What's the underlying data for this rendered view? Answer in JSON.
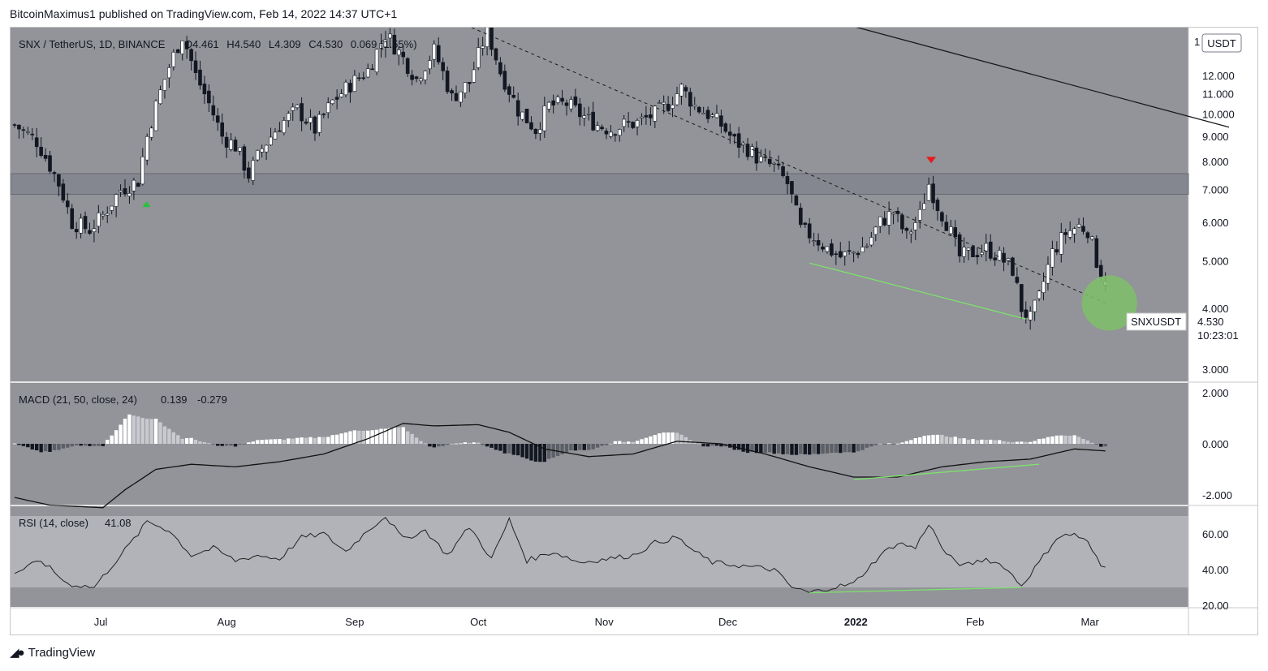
{
  "header": {
    "publisher": "BitcoinMaximus1 published on TradingView.com, Feb 14, 2022 14:37 UTC+1"
  },
  "footer": {
    "brand": "TradingView",
    "logo_icon": "tradingview-logo-icon"
  },
  "colors": {
    "pane_bg": "#929499",
    "up_candle": "#ffffff",
    "down_candle": "#131722",
    "support_green": "#7ee26c",
    "resistance_band": "#858790",
    "rsi_band": "#b1b3b8",
    "signal_red": "#e81b1b",
    "signal_green": "#27c23a",
    "highlight_circle": "#7fbf6a"
  },
  "chart_data": [
    {
      "type": "candlestick",
      "title": "SNX / TetherUS, 1D, BINANCE",
      "ohlc_readout": {
        "O": "4.461",
        "H": "4.540",
        "L": "4.309",
        "C": "4.530",
        "change": "0.069",
        "change_pct": "1.55%"
      },
      "currency_badge": "USDT",
      "y_scale": "log",
      "y_ticks": [
        "3.000",
        "4.000",
        "5.000",
        "6.000",
        "7.000",
        "8.000",
        "9.000",
        "10.000",
        "11.000",
        "12.000"
      ],
      "y_top_tick": "1",
      "x_ticks": [
        "Jul",
        "Aug",
        "Sep",
        "Oct",
        "Nov",
        "Dec",
        "2022",
        "Feb",
        "Mar"
      ],
      "last_price_label": {
        "symbol": "SNXUSDT",
        "price": "4.530",
        "countdown": "10:23:01"
      },
      "resistance_zone": [
        6.85,
        7.55
      ],
      "price_path": [
        [
          0,
          9.5
        ],
        [
          5,
          8.8
        ],
        [
          10,
          7.2
        ],
        [
          13,
          6.0
        ],
        [
          17,
          5.8
        ],
        [
          20,
          6.2
        ],
        [
          24,
          7.0
        ],
        [
          28,
          7.3
        ],
        [
          30,
          9.0
        ],
        [
          35,
          12.5
        ],
        [
          38,
          14.5
        ],
        [
          41,
          12.0
        ],
        [
          44,
          10.5
        ],
        [
          47,
          9.0
        ],
        [
          50,
          8.6
        ],
        [
          53,
          7.5
        ],
        [
          56,
          8.5
        ],
        [
          60,
          9.5
        ],
        [
          64,
          10.2
        ],
        [
          68,
          9.3
        ],
        [
          72,
          10.6
        ],
        [
          76,
          11.5
        ],
        [
          80,
          12.3
        ],
        [
          84,
          14.6
        ],
        [
          88,
          13.0
        ],
        [
          91,
          11.8
        ],
        [
          95,
          13.5
        ],
        [
          99,
          10.8
        ],
        [
          103,
          11.6
        ],
        [
          107,
          14.8
        ],
        [
          110,
          12.2
        ],
        [
          114,
          10.2
        ],
        [
          118,
          9.3
        ],
        [
          121,
          10.4
        ],
        [
          125,
          10.5
        ],
        [
          128,
          10.0
        ],
        [
          132,
          9.5
        ],
        [
          135,
          9.3
        ],
        [
          138,
          9.5
        ],
        [
          141,
          9.6
        ],
        [
          145,
          10.0
        ],
        [
          148,
          10.5
        ],
        [
          151,
          11.3
        ],
        [
          154,
          10.4
        ],
        [
          157,
          10.0
        ],
        [
          160,
          9.5
        ],
        [
          163,
          8.8
        ],
        [
          166,
          8.5
        ],
        [
          169,
          8.0
        ],
        [
          172,
          7.8
        ],
        [
          175,
          7.2
        ],
        [
          178,
          5.8
        ],
        [
          181,
          5.6
        ],
        [
          184,
          5.3
        ],
        [
          187,
          5.1
        ],
        [
          190,
          5.2
        ],
        [
          193,
          5.4
        ],
        [
          196,
          6.0
        ],
        [
          199,
          6.3
        ],
        [
          202,
          5.6
        ],
        [
          205,
          6.2
        ],
        [
          207,
          7.2
        ],
        [
          209,
          6.5
        ],
        [
          211,
          6.0
        ],
        [
          214,
          5.1
        ],
        [
          217,
          5.2
        ],
        [
          220,
          5.3
        ],
        [
          223,
          5.1
        ],
        [
          226,
          4.8
        ],
        [
          228,
          4.0
        ],
        [
          230,
          3.8
        ],
        [
          232,
          4.2
        ],
        [
          235,
          5.2
        ],
        [
          238,
          5.7
        ],
        [
          241,
          5.9
        ],
        [
          243,
          5.8
        ],
        [
          245,
          5.0
        ],
        [
          247,
          4.53
        ]
      ],
      "annotations": {
        "down_arrow_at": [
          207,
          8.05
        ],
        "up_arrow_at": [
          29.5,
          6.55
        ],
        "dashed_resistance_line": [
          [
            90,
            17.0
          ],
          [
            247,
            4.1
          ]
        ],
        "solid_resistance_line": [
          [
            140,
            20.0
          ],
          [
            275,
            9.4
          ]
        ],
        "green_support_line": [
          [
            180,
            4.95
          ],
          [
            229,
            3.8
          ]
        ],
        "highlight_circle_at": [
          247,
          4.1
        ]
      }
    },
    {
      "type": "line",
      "title": "MACD (21, 50, close, 24)",
      "readout": [
        "0.139",
        "-0.279"
      ],
      "y_ticks": [
        "2.000",
        "0.000",
        "-2.000"
      ],
      "ylim": [
        -2.4,
        2.0
      ],
      "macd_path": [
        [
          0,
          -2.1
        ],
        [
          8,
          -2.4
        ],
        [
          20,
          -2.5
        ],
        [
          25,
          -1.8
        ],
        [
          32,
          -1.0
        ],
        [
          40,
          -0.8
        ],
        [
          50,
          -0.9
        ],
        [
          60,
          -0.7
        ],
        [
          70,
          -0.4
        ],
        [
          80,
          0.2
        ],
        [
          88,
          0.8
        ],
        [
          95,
          0.7
        ],
        [
          105,
          0.75
        ],
        [
          112,
          0.45
        ],
        [
          120,
          -0.2
        ],
        [
          130,
          -0.5
        ],
        [
          140,
          -0.4
        ],
        [
          150,
          0.1
        ],
        [
          160,
          0.0
        ],
        [
          170,
          -0.4
        ],
        [
          180,
          -0.9
        ],
        [
          190,
          -1.3
        ],
        [
          200,
          -1.3
        ],
        [
          210,
          -0.9
        ],
        [
          220,
          -0.7
        ],
        [
          230,
          -0.6
        ],
        [
          240,
          -0.2
        ],
        [
          247,
          -0.279
        ]
      ],
      "divergence_line": [
        [
          190,
          -1.4
        ],
        [
          232,
          -0.8
        ]
      ]
    },
    {
      "type": "line",
      "title": "RSI (14, close)",
      "readout": "41.08",
      "y_ticks": [
        "60.00",
        "40.00",
        "20.00"
      ],
      "ylim": [
        19,
        74
      ],
      "band": [
        30,
        70
      ],
      "rsi_path": [
        [
          0,
          38
        ],
        [
          6,
          45
        ],
        [
          12,
          32
        ],
        [
          18,
          30
        ],
        [
          24,
          48
        ],
        [
          28,
          60
        ],
        [
          30,
          67
        ],
        [
          35,
          62
        ],
        [
          40,
          48
        ],
        [
          45,
          52
        ],
        [
          50,
          45
        ],
        [
          55,
          48
        ],
        [
          60,
          46
        ],
        [
          65,
          58
        ],
        [
          70,
          60
        ],
        [
          75,
          50
        ],
        [
          80,
          62
        ],
        [
          84,
          70
        ],
        [
          88,
          57
        ],
        [
          93,
          62
        ],
        [
          98,
          48
        ],
        [
          103,
          64
        ],
        [
          108,
          46
        ],
        [
          112,
          68
        ],
        [
          116,
          45
        ],
        [
          122,
          50
        ],
        [
          128,
          44
        ],
        [
          134,
          46
        ],
        [
          140,
          48
        ],
        [
          145,
          55
        ],
        [
          150,
          58
        ],
        [
          154,
          50
        ],
        [
          158,
          44
        ],
        [
          165,
          42
        ],
        [
          172,
          40
        ],
        [
          176,
          30
        ],
        [
          180,
          27
        ],
        [
          185,
          30
        ],
        [
          190,
          32
        ],
        [
          196,
          48
        ],
        [
          200,
          55
        ],
        [
          204,
          52
        ],
        [
          207,
          66
        ],
        [
          211,
          48
        ],
        [
          215,
          42
        ],
        [
          220,
          46
        ],
        [
          224,
          42
        ],
        [
          228,
          31
        ],
        [
          232,
          44
        ],
        [
          236,
          58
        ],
        [
          240,
          60
        ],
        [
          243,
          55
        ],
        [
          246,
          42
        ],
        [
          247,
          41.08
        ]
      ],
      "divergence_line": [
        [
          180,
          27
        ],
        [
          228,
          30
        ]
      ]
    }
  ]
}
